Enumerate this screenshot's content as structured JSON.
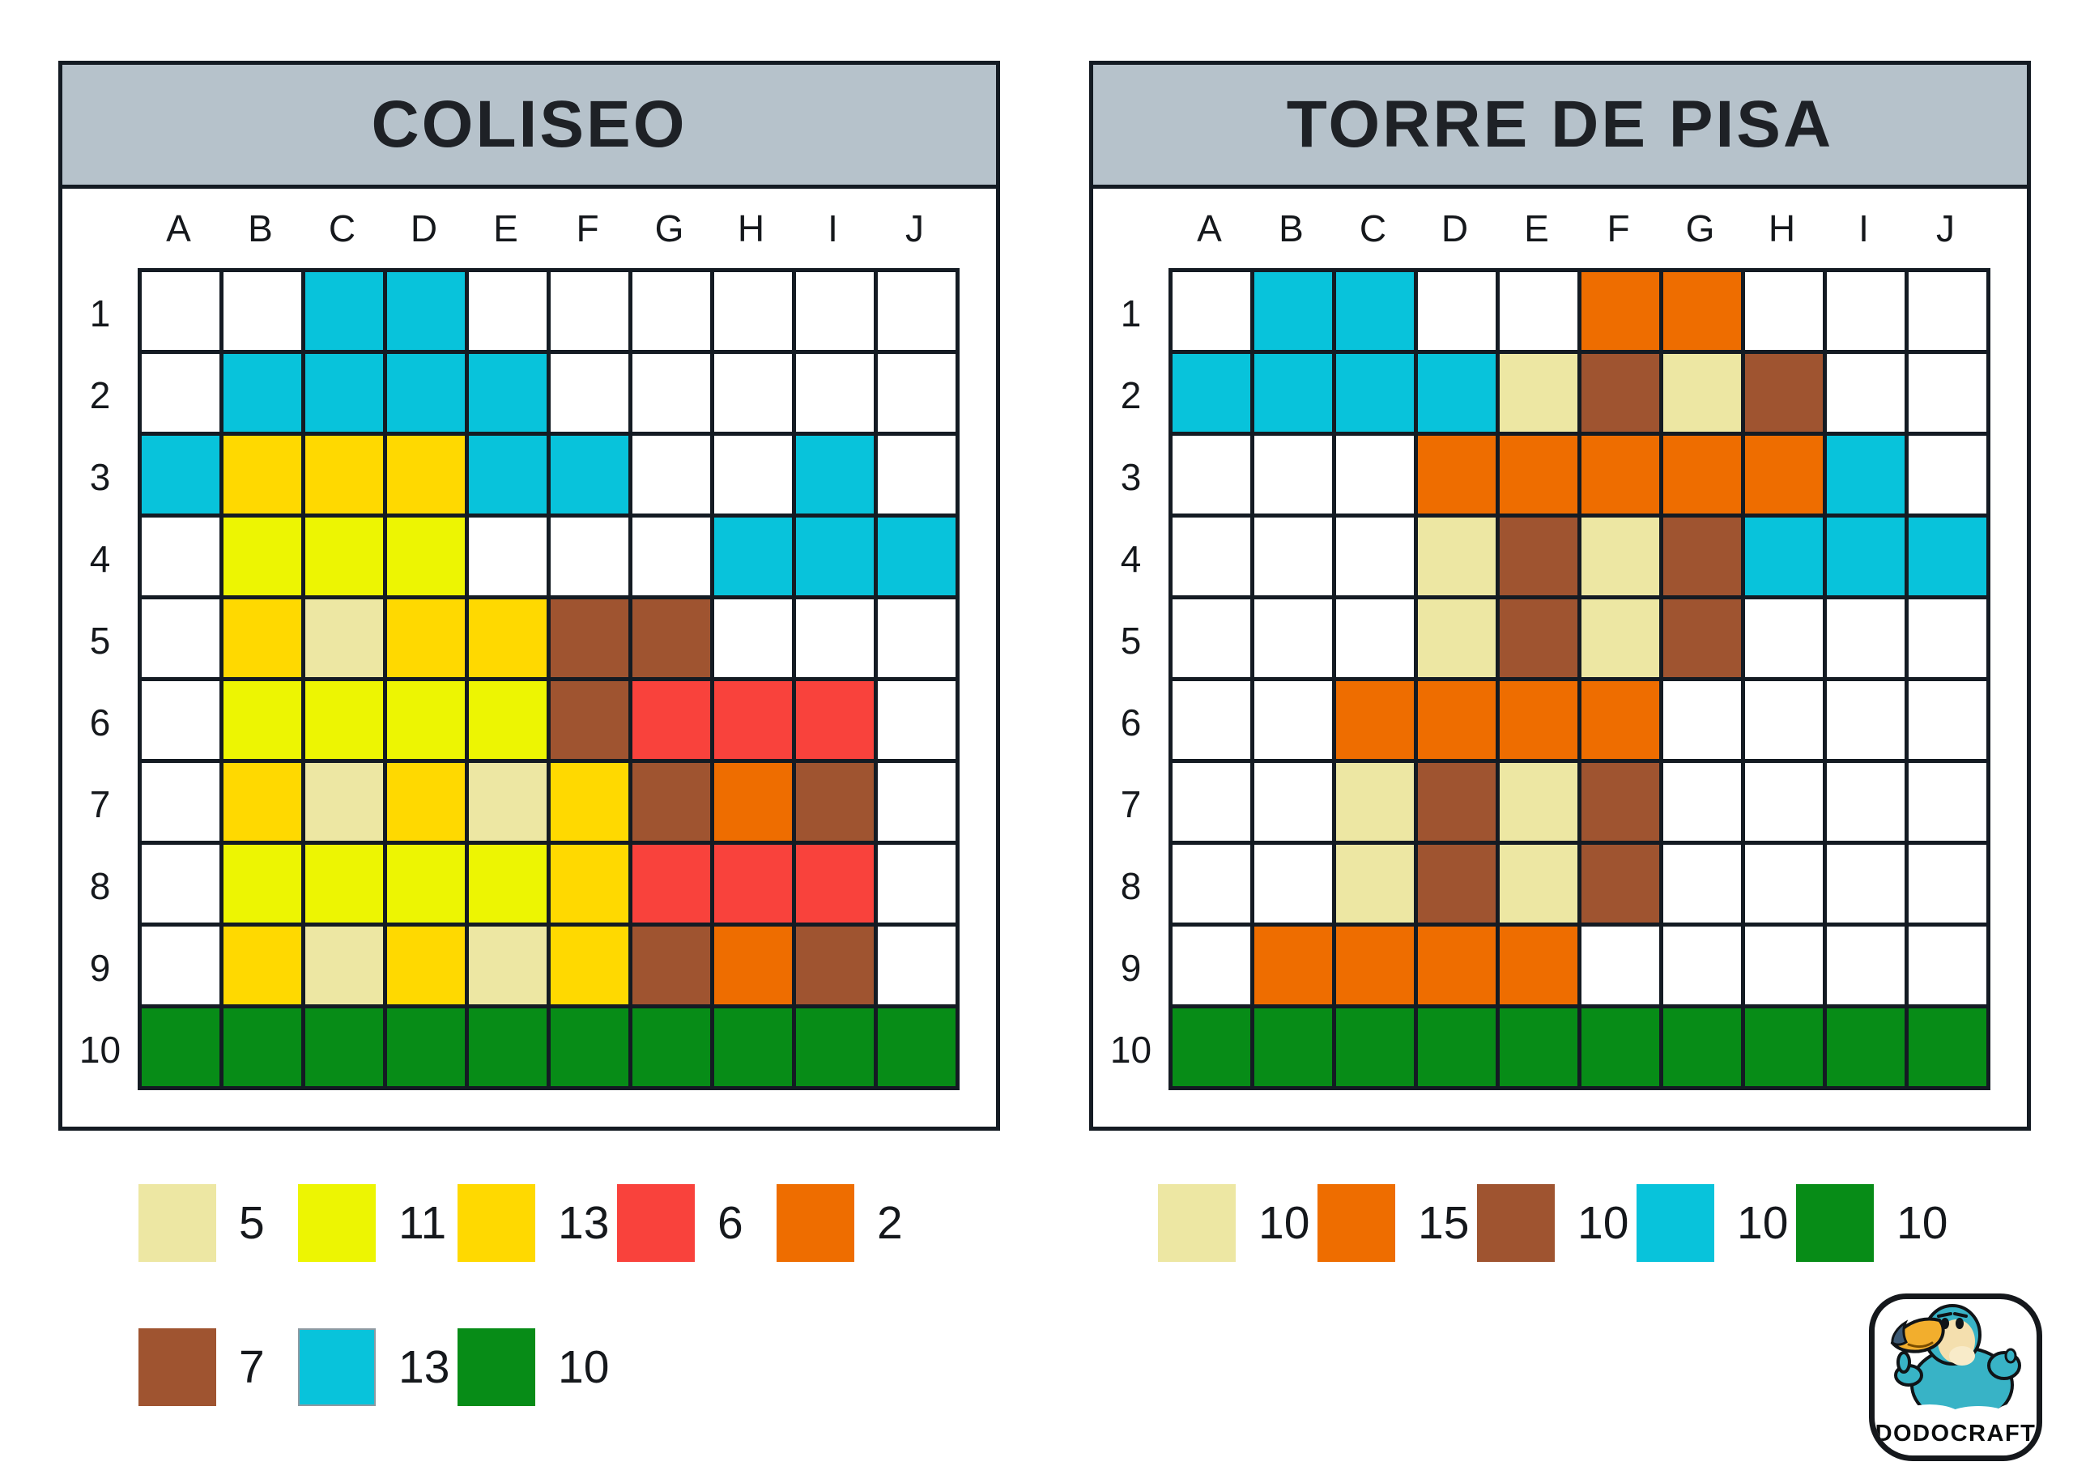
{
  "palette": {
    "w": "#FFFFFF",
    "c": "#08C3DB",
    "g": "#FFD900",
    "l": "#EDF502",
    "k": "#EDE7A3",
    "r": "#F9423C",
    "o": "#EE6D00",
    "b": "#9F5430",
    "n": "#078C17"
  },
  "color_names": {
    "w": "white",
    "c": "cyan",
    "g": "golden-yellow",
    "l": "lemon-yellow",
    "k": "cream",
    "r": "red",
    "o": "orange",
    "b": "brown",
    "n": "green"
  },
  "grid_line_color": "#141B23",
  "header_bg_color": "#B6C2CB",
  "boards": [
    {
      "title": "COLISEO",
      "columns": [
        "A",
        "B",
        "C",
        "D",
        "E",
        "F",
        "G",
        "H",
        "I",
        "J"
      ],
      "rows": [
        "1",
        "2",
        "3",
        "4",
        "5",
        "6",
        "7",
        "8",
        "9",
        "10"
      ],
      "cells": [
        "..cc......",
        ".cccc.....",
        "cgggcc..c.",
        ".lll...ccc",
        ".gkggbb...",
        ".llllbrrr.",
        ".gkgkgbob.",
        ".llllgrrr.",
        ".gkgkgbob.",
        "nnnnnnnnnn"
      ]
    },
    {
      "title": "TORRE DE PISA",
      "columns": [
        "A",
        "B",
        "C",
        "D",
        "E",
        "F",
        "G",
        "H",
        "I",
        "J"
      ],
      "rows": [
        "1",
        "2",
        "3",
        "4",
        "5",
        "6",
        "7",
        "8",
        "9",
        "10"
      ],
      "cells": [
        ".cc..oo...",
        "cccckbkb..",
        "...oooooc.",
        "...kbkbccc",
        "...kbkb...",
        "..oooo....",
        "..kbkb....",
        "..kbkb....",
        ".oooo.....",
        "nnnnnnnnnn"
      ]
    }
  ],
  "legends": {
    "left": [
      [
        {
          "color": "k",
          "count": "5"
        },
        {
          "color": "l",
          "count": "11"
        },
        {
          "color": "g",
          "count": "13"
        },
        {
          "color": "r",
          "count": "6"
        },
        {
          "color": "o",
          "count": "2"
        }
      ],
      [
        {
          "color": "b",
          "count": "7"
        },
        {
          "color": "c",
          "count": "13",
          "border": true
        },
        {
          "color": "n",
          "count": "10"
        }
      ]
    ],
    "right": [
      [
        {
          "color": "k",
          "count": "10"
        },
        {
          "color": "o",
          "count": "15"
        },
        {
          "color": "b",
          "count": "10"
        },
        {
          "color": "c",
          "count": "10"
        },
        {
          "color": "n",
          "count": "10"
        }
      ]
    ]
  },
  "logo": {
    "text": "DODOCRAFT"
  }
}
